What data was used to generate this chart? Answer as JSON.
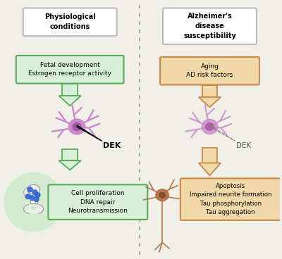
{
  "background_color": "#f0efe8",
  "fig_width": 4.0,
  "fig_height": 3.68,
  "dpi": 100,
  "left_title": "Physiological\nconditions",
  "right_title": "Alzheimer's\ndisease\nsusceptibility",
  "left_box1_text": "Fetal development\nEstrogen receptor activity",
  "left_box1_color": "#5aaa5a",
  "left_box1_facecolor": "#d8f0d8",
  "right_box1_text": "Aging\nAD risk factors",
  "right_box1_color": "#c8884a",
  "right_box1_facecolor": "#f0d8a8",
  "left_box2_text": "Cell proliferation\nDNA repair\nNeurotransmission",
  "left_box2_color": "#5aaa5a",
  "left_box2_facecolor": "#d8f0d8",
  "right_box2_text": "Apoptosis\nImpaired neurite formation\nTau phosphorylation\nTau aggregation",
  "right_box2_color": "#c8884a",
  "right_box2_facecolor": "#f0d8a8",
  "arrow_left_color": "#5aaa5a",
  "arrow_left_face": "#d8f0d8",
  "arrow_right_color": "#c8884a",
  "arrow_right_face": "#f0d8a8",
  "neuron_color": "#cc88cc",
  "neuron_body_color": "#bb77bb",
  "neuron_nucleus_color": "#995599",
  "dek_label_left": "DEK",
  "dek_label_right": "DEK",
  "synapse_circle_color": "#c8ecc8",
  "synapse_bone_color": "#e8e8e8",
  "synapse_dot_color": "#3366cc",
  "damaged_neuron_color": "#b07040"
}
